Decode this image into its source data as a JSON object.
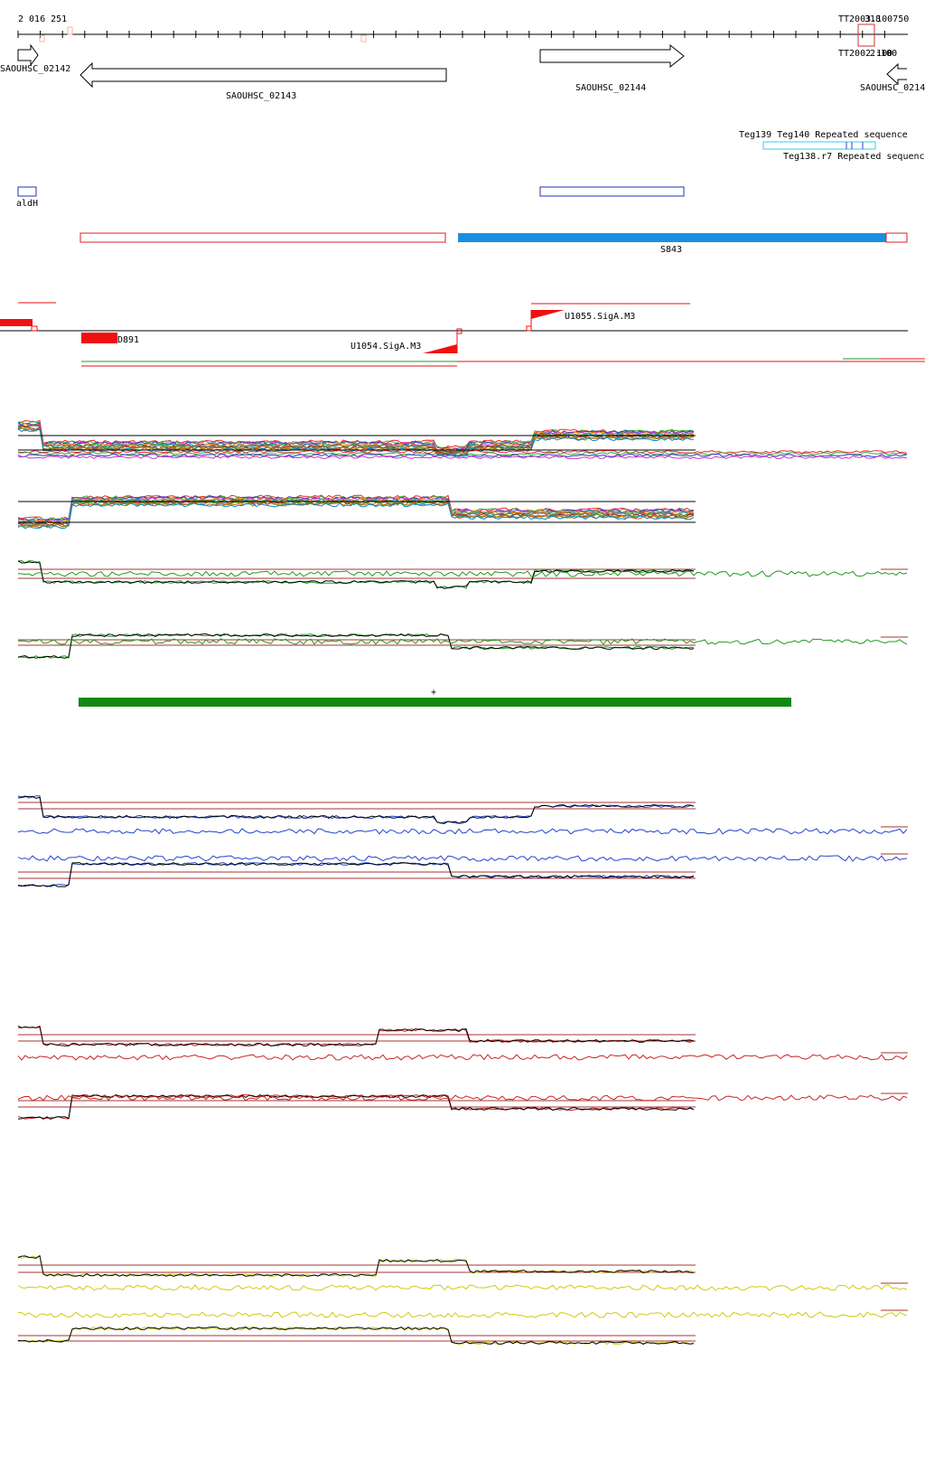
{
  "ruler": {
    "start_label": "2 016 251",
    "end_label": "TT2003.100750",
    "mark_label_top": "318",
    "mark_label_bottom": "TT2002.100",
    "mark_sublabel": "2:100"
  },
  "genes": [
    {
      "label": "SAOUHSC_02142",
      "strand": "+"
    },
    {
      "label": "SAOUHSC_02143",
      "strand": "-"
    },
    {
      "label": "SAOUHSC_02144",
      "strand": "+"
    },
    {
      "label": "SAOUHSC_0214",
      "strand": "-"
    }
  ],
  "annotations": {
    "teg_top": "Teg139 Teg140 Repeated sequence",
    "teg_bottom": "Teg138.r7 Repeated sequence"
  },
  "features": {
    "ald": "aldH",
    "s_feature": "S843",
    "d_feature": "D891",
    "u1054": "U1054.SigA.M3",
    "u1055": "U1055.SigA.M3"
  },
  "marker": "+",
  "colors": {
    "gene_outline": "#000000",
    "blue_box": "#2233bb",
    "red_box": "#dd2222",
    "segment_blue": "#1a8fe0",
    "promoter_red": "#ee1111",
    "teg_cyan": "#33ccee",
    "green_bar": "#118811",
    "expr_green": "#229922",
    "expr_blue": "#2244cc",
    "expr_red": "#cc2222",
    "expr_yellow": "#cccc11",
    "threshold": "#aa3333"
  }
}
